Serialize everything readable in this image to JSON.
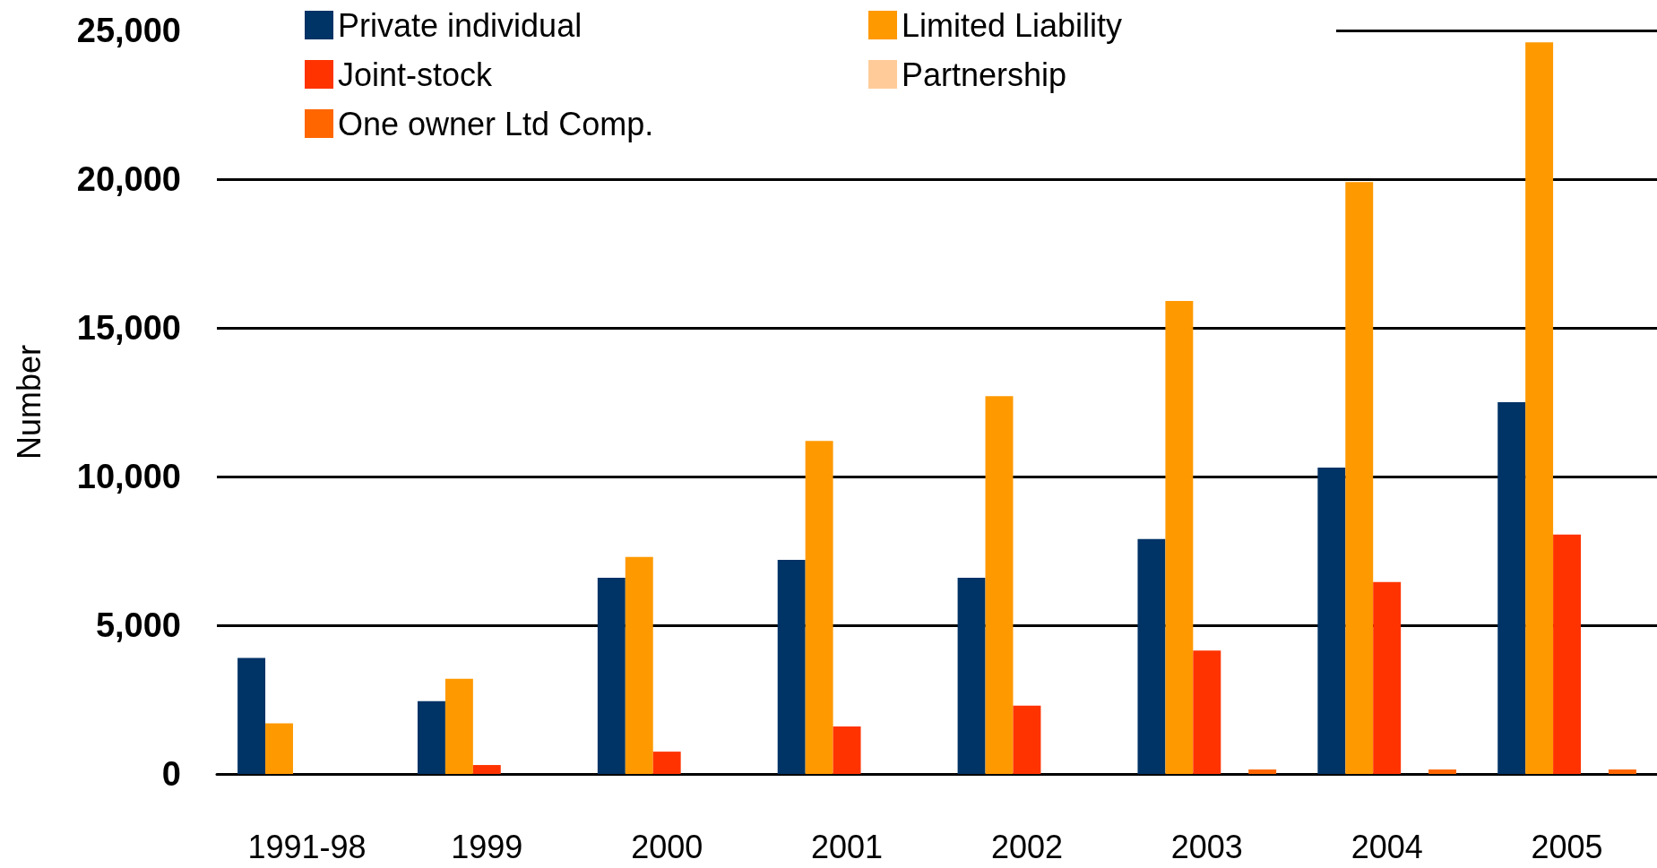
{
  "chart_data": {
    "type": "bar",
    "ylabel": "Number",
    "categories": [
      "1991-98",
      "1999",
      "2000",
      "2001",
      "2002",
      "2003",
      "2004",
      "2005"
    ],
    "series": [
      {
        "name": "Private individual",
        "color": "#003366",
        "values": [
          3900,
          2450,
          6600,
          7200,
          6600,
          7900,
          10300,
          12500
        ]
      },
      {
        "name": "Limited Liability",
        "color": "#ff9900",
        "values": [
          1700,
          3200,
          7300,
          11200,
          12700,
          15900,
          19900,
          24600
        ]
      },
      {
        "name": "Joint-stock",
        "color": "#ff3300",
        "values": [
          null,
          300,
          750,
          1600,
          2300,
          4150,
          6450,
          8050
        ]
      },
      {
        "name": "Partnership",
        "color": "#ffcc99",
        "values": [
          null,
          null,
          null,
          null,
          null,
          null,
          null,
          null
        ]
      },
      {
        "name": "One owner Ltd Comp.",
        "color": "#ff6600",
        "values": [
          null,
          null,
          null,
          null,
          null,
          150,
          150,
          150
        ]
      }
    ],
    "ylim": [
      0,
      25000
    ],
    "yticks": [
      0,
      {
        "value": 5000,
        "label": "5,000"
      },
      {
        "value": 10000,
        "label": "10,000"
      },
      {
        "value": 15000,
        "label": "15,000"
      },
      {
        "value": 20000,
        "label": "20,000"
      },
      {
        "value": 25000,
        "label": "25,000"
      }
    ],
    "grid": "y",
    "legend": "top"
  }
}
